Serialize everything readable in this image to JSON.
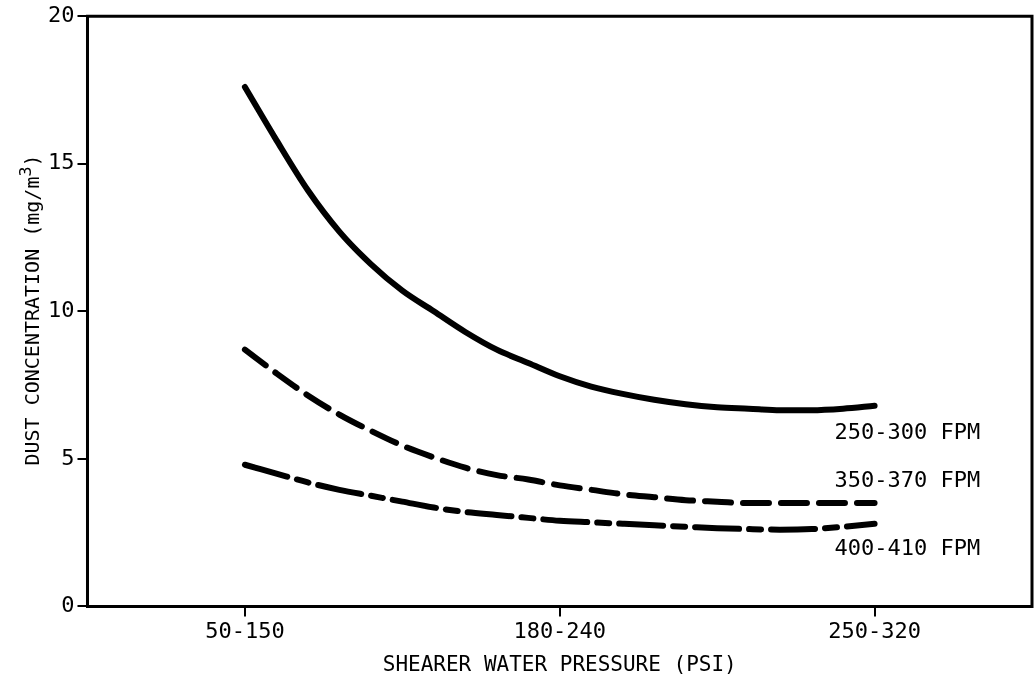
{
  "chart_data": {
    "type": "line",
    "xlabel": "SHEARER WATER PRESSURE (PSI)",
    "ylabel": "DUST CONCENTRATION (mg/m$^{3}$)",
    "categories": [
      null,
      null,
      null,
      null,
      null,
      "50-150",
      null,
      null,
      null,
      null,
      null,
      null,
      null,
      null,
      null,
      "180-240",
      null,
      null,
      null,
      null,
      null,
      null,
      null,
      null,
      null,
      "250-320",
      null,
      null,
      null,
      null,
      null
    ],
    "ylim": [
      0,
      20
    ],
    "yticks": [
      0,
      5,
      10,
      15,
      20
    ],
    "grid": false,
    "legend": false,
    "marker": "none",
    "series": [
      {
        "name": "250-300 FPM",
        "color": "#000000",
        "line_style": "solid",
        "values": [
          null,
          null,
          null,
          null,
          null,
          17.6,
          15.8,
          14.1,
          12.7,
          11.6,
          10.7,
          10.0,
          9.3,
          8.7,
          8.25,
          7.8,
          7.45,
          7.2,
          7.0,
          6.85,
          6.75,
          6.7,
          6.65,
          6.65,
          6.7,
          6.8,
          null,
          null,
          null,
          null,
          null
        ]
      },
      {
        "name": "350-370 FPM",
        "color": "#000000",
        "line_style": "dashed",
        "values": [
          null,
          null,
          null,
          null,
          null,
          8.7,
          7.9,
          7.15,
          6.5,
          5.95,
          5.45,
          5.05,
          4.7,
          4.45,
          4.3,
          4.1,
          3.95,
          3.8,
          3.7,
          3.6,
          3.55,
          3.5,
          3.5,
          3.5,
          3.5,
          3.5,
          null,
          null,
          null,
          null,
          null
        ]
      },
      {
        "name": "400-410 FPM",
        "color": "#000000",
        "line_style": "dotted",
        "values": [
          null,
          null,
          null,
          null,
          null,
          4.8,
          4.5,
          4.2,
          3.95,
          3.75,
          3.55,
          3.35,
          3.2,
          3.1,
          3.0,
          2.9,
          2.85,
          2.8,
          2.75,
          2.7,
          2.65,
          2.62,
          2.6,
          2.62,
          2.7,
          2.8,
          null,
          null,
          null,
          null,
          null
        ]
      }
    ]
  }
}
